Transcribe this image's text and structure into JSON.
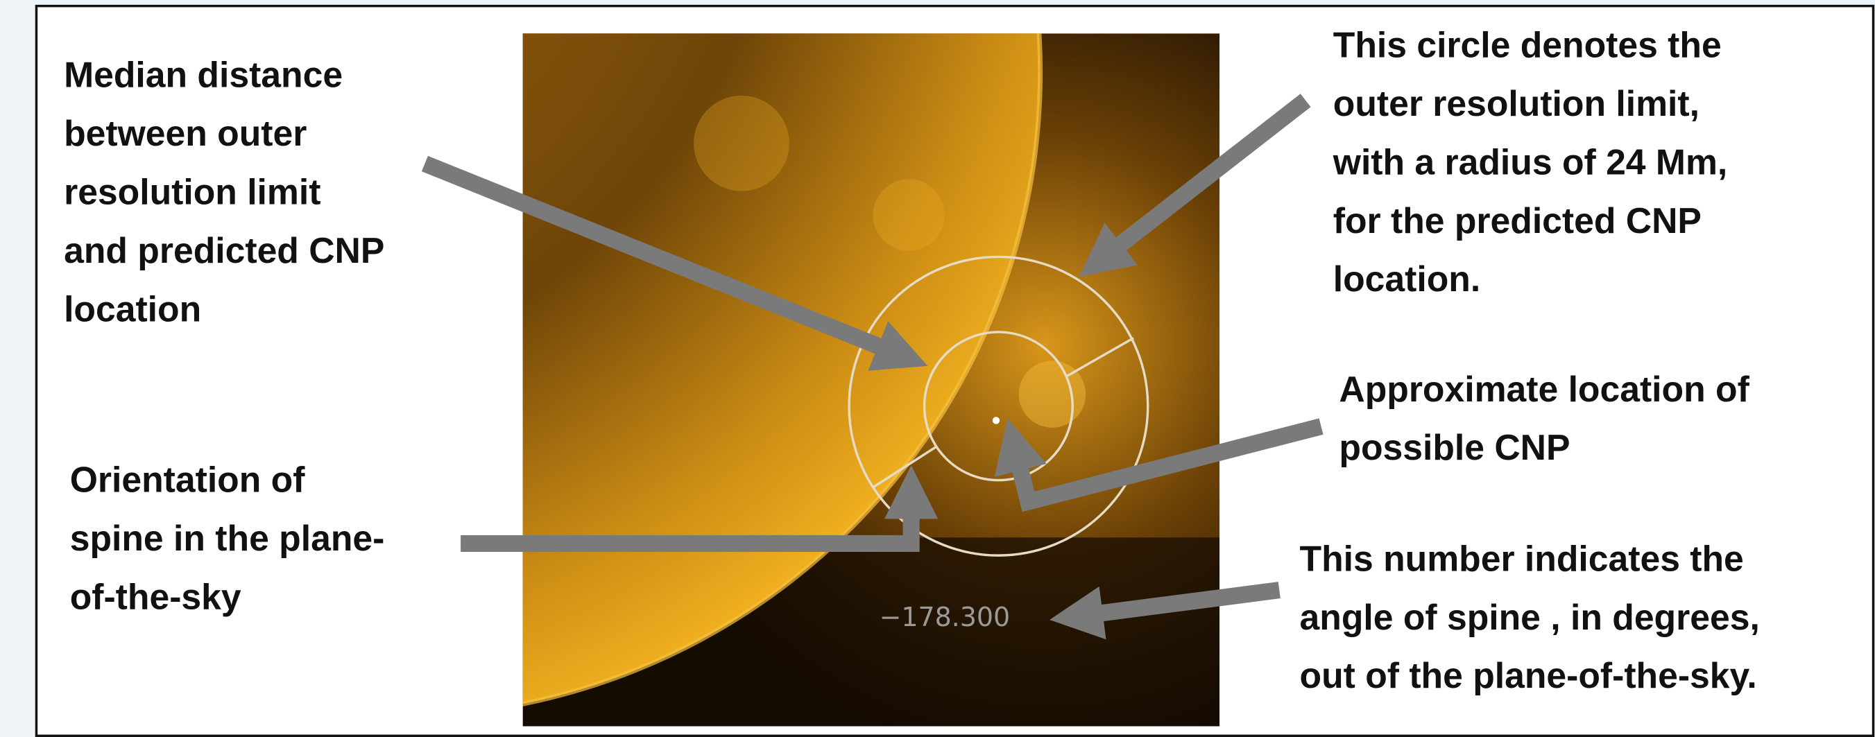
{
  "annotations": [
    {
      "lines": [
        "Median distance",
        "between outer",
        "resolution limit",
        "and predicted CNP",
        "location"
      ]
    },
    {
      "lines": [
        "This circle denotes the",
        "outer resolution limit,",
        "with a radius of 24 Mm,",
        "for the predicted CNP",
        "location."
      ]
    },
    {
      "lines": [
        "Approximate location of",
        "possible CNP"
      ]
    },
    {
      "lines": [
        "Orientation of",
        "spine in the plane-",
        "of-the-sky"
      ]
    },
    {
      "lines": [
        "This number indicates the",
        "angle of spine , in degrees,",
        "out of the plane-of-the-sky."
      ]
    }
  ],
  "image": {
    "label": "−178.300"
  }
}
